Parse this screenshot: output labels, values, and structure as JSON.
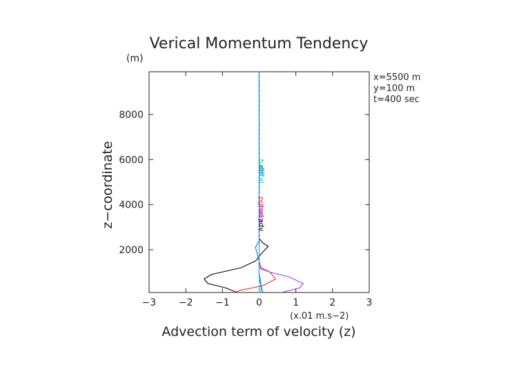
{
  "chart_data": {
    "type": "line",
    "title": "Verical Momentum Tendency",
    "ylabel": "z−coordinate",
    "yunit": "(m)",
    "xlabel": "Advection term of velocity (z)",
    "xunit": "(x.01 m.s−2)",
    "xlim": [
      -3,
      3
    ],
    "ylim": [
      100,
      9900
    ],
    "xticks": [
      -3,
      -2,
      -1,
      0,
      1,
      2,
      3
    ],
    "yticks": [
      2000,
      4000,
      6000,
      8000
    ],
    "grid": false,
    "annotations": [
      "x=5500 m",
      "y=100 m",
      "t=400 sec"
    ],
    "series": [
      {
        "name": "adv",
        "color": "#000000",
        "dash": "",
        "label_z": 3100,
        "points": [
          [
            -0.6,
            100
          ],
          [
            -0.9,
            300
          ],
          [
            -1.4,
            500
          ],
          [
            -1.5,
            700
          ],
          [
            -1.3,
            900
          ],
          [
            -0.5,
            1200
          ],
          [
            -0.1,
            1500
          ],
          [
            0,
            1700
          ],
          [
            0.1,
            1900
          ],
          [
            0.25,
            2150
          ],
          [
            0.1,
            2300
          ],
          [
            0,
            2500
          ],
          [
            0,
            3000
          ],
          [
            0,
            4000
          ],
          [
            0,
            5000
          ],
          [
            0,
            6000
          ],
          [
            0,
            7000
          ],
          [
            0,
            8000
          ],
          [
            0,
            9900
          ]
        ]
      },
      {
        "name": "pgrad",
        "color": "#ff2a2a",
        "dash": "",
        "label_z": 3900,
        "points": [
          [
            -0.7,
            100
          ],
          [
            -0.5,
            200
          ],
          [
            0.1,
            400
          ],
          [
            0.45,
            700
          ],
          [
            0.3,
            1000
          ],
          [
            0.05,
            1200
          ],
          [
            0,
            1500
          ],
          [
            0,
            2000
          ],
          [
            0,
            3000
          ],
          [
            0,
            9900
          ]
        ]
      },
      {
        "name": "buoy",
        "color": "#9933ff",
        "dash": "",
        "label_z": 3600,
        "points": [
          [
            0.6,
            100
          ],
          [
            1.1,
            300
          ],
          [
            1.2,
            500
          ],
          [
            0.8,
            800
          ],
          [
            0.3,
            1000
          ],
          [
            0.05,
            1150
          ],
          [
            0,
            1300
          ],
          [
            0,
            2000
          ],
          [
            0,
            9900
          ]
        ]
      },
      {
        "name": "turb",
        "color": "#00cc66",
        "dash": "",
        "label_z": 5700,
        "points": [
          [
            0.05,
            100
          ],
          [
            0.05,
            300
          ],
          [
            0.02,
            600
          ],
          [
            0,
            800
          ],
          [
            0,
            9900
          ]
        ]
      },
      {
        "name": "diff",
        "color": "#3355ff",
        "dash": "",
        "label_z": 5500,
        "points": [
          [
            0.1,
            100
          ],
          [
            0.05,
            400
          ],
          [
            0.03,
            700
          ],
          [
            0,
            900
          ],
          [
            0,
            1500
          ],
          [
            -0.1,
            2100
          ],
          [
            0,
            2400
          ],
          [
            0,
            9900
          ]
        ]
      },
      {
        "name": "total",
        "color": "#00cccc",
        "dash": "4,3",
        "label_z": 5300,
        "points": [
          [
            0,
            100
          ],
          [
            0,
            1000
          ],
          [
            0,
            2000
          ],
          [
            0,
            9900
          ]
        ]
      }
    ]
  }
}
